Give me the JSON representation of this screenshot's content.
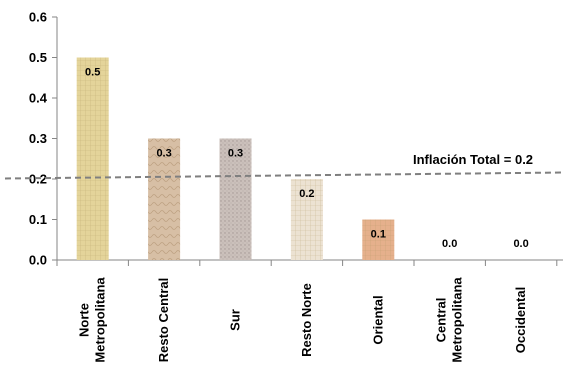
{
  "chart_data": {
    "type": "bar",
    "categories": [
      [
        "Norte",
        "Metropolitana"
      ],
      [
        "Resto Central"
      ],
      [
        "Sur"
      ],
      [
        "Resto Norte"
      ],
      [
        "Oriental"
      ],
      [
        "Central",
        "Metropolitana"
      ],
      [
        "Occidental"
      ]
    ],
    "values": [
      0.5,
      0.3,
      0.3,
      0.2,
      0.1,
      0.0,
      0.0
    ],
    "data_labels": [
      "0.5",
      "0.3",
      "0.3",
      "0.2",
      "0.1",
      "0.0",
      "0.0"
    ],
    "ylim": [
      0,
      0.6
    ],
    "yticks": [
      0,
      0.1,
      0.2,
      0.3,
      0.4,
      0.5,
      0.6
    ],
    "ytick_labels": [
      "0.0",
      "0.1",
      "0.2",
      "0.3",
      "0.4",
      "0.5",
      "0.6"
    ],
    "reference_line": {
      "value": 0.2,
      "label": "Inflación Total = 0.2",
      "style": "dashed",
      "color": "#7f7f7f"
    },
    "bar_colors": [
      "#e4d49a",
      "#d7bfa5",
      "#cbc0bb",
      "#ece2d2",
      "#e5b08c",
      "#ffffff",
      "#ffffff"
    ],
    "grid": false,
    "legend": "none"
  }
}
